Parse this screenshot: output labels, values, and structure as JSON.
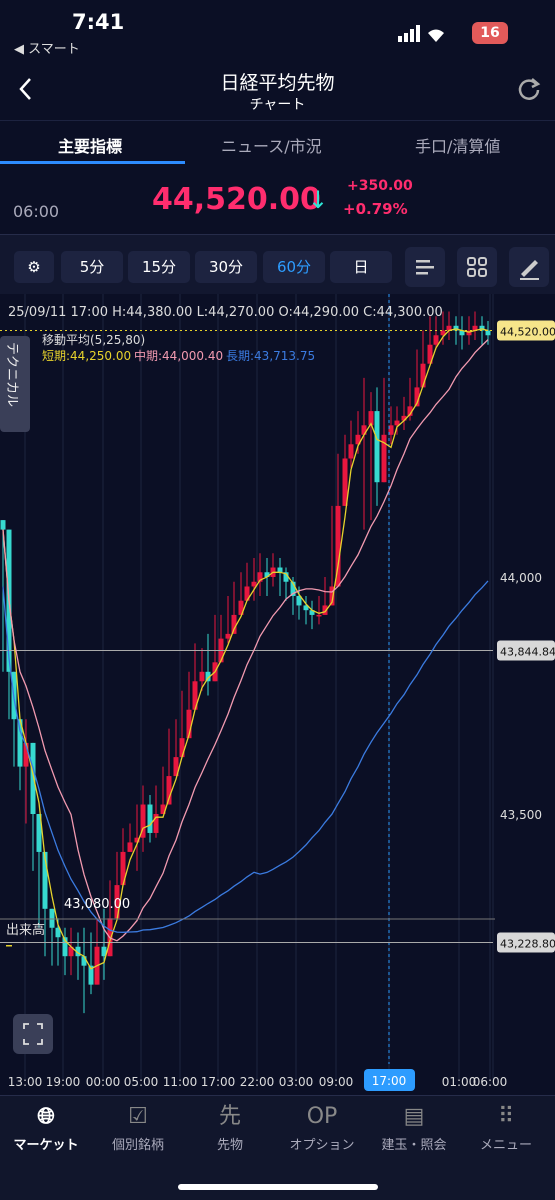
{
  "status": {
    "time": "7:41",
    "back_app": "◀ スマート",
    "battery": "16"
  },
  "header": {
    "title": "日経平均先物",
    "subtitle": "チャート"
  },
  "tabs": [
    "主要指標",
    "ニュース/市況",
    "手口/清算値"
  ],
  "price": {
    "time": "06:00",
    "value": "44,520.00",
    "change": "+350.00",
    "change_pct": "+0.79%"
  },
  "toolbar": {
    "intervals": [
      "5分",
      "15分",
      "30分",
      "60分",
      "日"
    ],
    "selected": "60分"
  },
  "chart_data": {
    "type": "candlestick",
    "ohlc_line": "25/09/11 17:00  H:44,380.00  L:44,270.00  O:44,290.00  C:44,300.00",
    "indicator": {
      "title": "移動平均(5,25,80)",
      "short": "短期:44,250.00",
      "mid": "中期:44,000.40",
      "long": "長期:43,713.75"
    },
    "side_label": "テクニカル",
    "y_ticks": [
      "44,000",
      "43,500"
    ],
    "h_lines": [
      {
        "label": "44,520.00",
        "value": 44520
      },
      {
        "label": "43,844.84",
        "value": 43844.84
      },
      {
        "label": "43,228.80",
        "value": 43228.8
      }
    ],
    "min_annotation": "43,080.00",
    "x_ticks": [
      "13:00",
      "19:00",
      "00:00",
      "05:00",
      "11:00",
      "17:00",
      "22:00",
      "03:00",
      "09:00",
      "17:00",
      "01:00",
      "06:00"
    ],
    "volume_label": "出来高",
    "cursor_label": "17:00",
    "colors": {
      "up": "#e8173f",
      "down": "#37d9d0",
      "short": "#e6d22c",
      "mid": "#f29ab0",
      "long": "#3b7be0"
    }
  },
  "nav": [
    "マーケット",
    "個別銘柄",
    "先物",
    "オプション",
    "建玉・照会",
    "メニュー"
  ]
}
